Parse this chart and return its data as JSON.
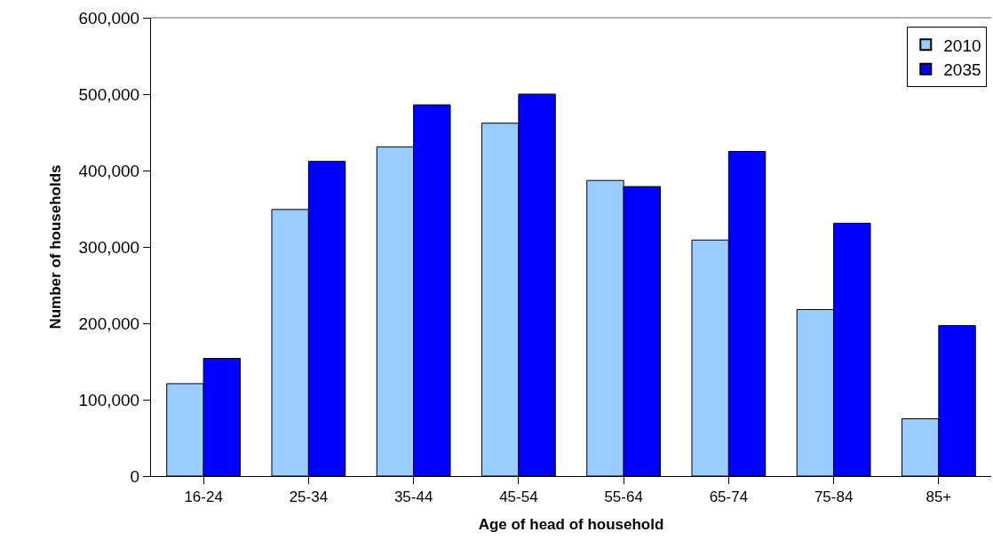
{
  "chart_data": {
    "type": "bar",
    "xlabel": "Age of head of household",
    "ylabel": "Number of households",
    "categories": [
      "16-24",
      "25-34",
      "35-44",
      "45-54",
      "55-64",
      "65-74",
      "75-84",
      "85+"
    ],
    "series": [
      {
        "name": "2010",
        "color": "#99ccff",
        "values": [
          121000,
          349000,
          431000,
          462000,
          387000,
          309000,
          218000,
          75000
        ]
      },
      {
        "name": "2035",
        "color": "#0000ff",
        "values": [
          154000,
          412000,
          486000,
          500000,
          379000,
          425000,
          331000,
          197000
        ]
      }
    ],
    "ylim": [
      0,
      600000
    ],
    "yticks": [
      {
        "value": 0,
        "label": "0"
      },
      {
        "value": 100000,
        "label": "100,000"
      },
      {
        "value": 200000,
        "label": "200,000"
      },
      {
        "value": 300000,
        "label": "300,000"
      },
      {
        "value": 400000,
        "label": "400,000"
      },
      {
        "value": 500000,
        "label": "500,000"
      },
      {
        "value": 600000,
        "label": "600,000"
      }
    ],
    "legend": "top right"
  }
}
